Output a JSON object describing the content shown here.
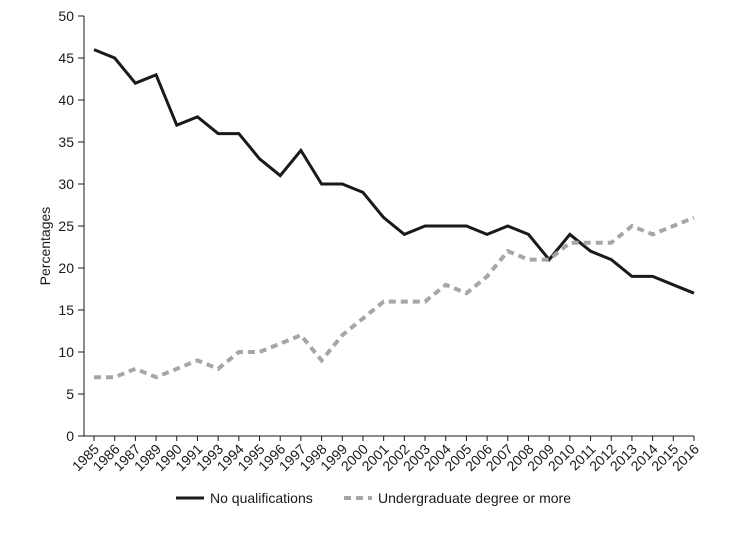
{
  "chart_data": {
    "type": "line",
    "title": "",
    "xlabel": "",
    "ylabel": "Percentages",
    "ylim": [
      0,
      50
    ],
    "yticks": [
      0,
      5,
      10,
      15,
      20,
      25,
      30,
      35,
      40,
      45,
      50
    ],
    "categories": [
      "1985",
      "1986",
      "1987",
      "1989",
      "1990",
      "1991",
      "1993",
      "1994",
      "1995",
      "1996",
      "1997",
      "1998",
      "1999",
      "2000",
      "2001",
      "2002",
      "2003",
      "2004",
      "2005",
      "2006",
      "2007",
      "2008",
      "2009",
      "2010",
      "2011",
      "2012",
      "2013",
      "2014",
      "2015",
      "2016"
    ],
    "series": [
      {
        "name": "No qualifications",
        "color": "#1a1a1a",
        "style": "solid",
        "values": [
          46,
          45,
          42,
          43,
          37,
          38,
          36,
          36,
          33,
          31,
          34,
          30,
          30,
          29,
          26,
          24,
          25,
          25,
          25,
          24,
          25,
          24,
          21,
          24,
          22,
          21,
          19,
          19,
          18,
          17
        ]
      },
      {
        "name": "Undergraduate degree or more",
        "color": "#a6a6a6",
        "style": "dashed",
        "values": [
          7,
          7,
          8,
          7,
          8,
          9,
          8,
          10,
          10,
          11,
          12,
          9,
          12,
          14,
          16,
          16,
          16,
          18,
          17,
          19,
          22,
          21,
          21,
          23,
          23,
          23,
          25,
          24,
          25,
          26
        ]
      }
    ],
    "grid": false,
    "legend": "bottom"
  }
}
